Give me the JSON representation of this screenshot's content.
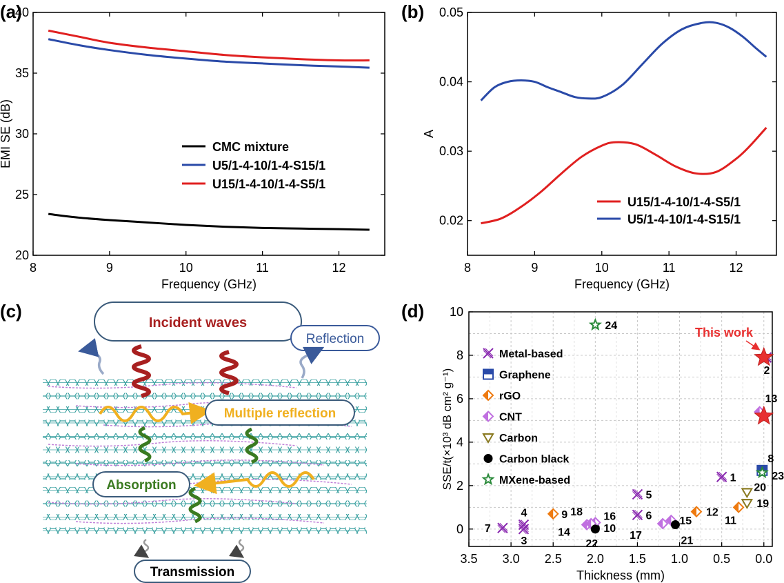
{
  "panel_labels": [
    "(a)",
    "(b)",
    "(c)",
    "(d)"
  ],
  "chart_data": [
    {
      "id": "a",
      "type": "line",
      "xlabel": "Frequency (GHz)",
      "ylabel": "EMI SE (dB)",
      "xlim": [
        8,
        12.6
      ],
      "ylim": [
        20,
        40
      ],
      "xticks": [
        8,
        9,
        10,
        11,
        12
      ],
      "yticks": [
        20,
        25,
        30,
        35,
        40
      ],
      "legend_position": "center-right",
      "grid": false,
      "series": [
        {
          "name": "CMC mixture",
          "color": "#000000",
          "x": [
            8.2,
            8.6,
            9.0,
            9.5,
            10.0,
            10.5,
            11.0,
            11.5,
            12.0,
            12.4
          ],
          "y": [
            23.4,
            23.1,
            22.9,
            22.7,
            22.5,
            22.35,
            22.25,
            22.2,
            22.15,
            22.1
          ]
        },
        {
          "name": "U5/1-4-10/1-4-S15/1",
          "color": "#2a4aa8",
          "x": [
            8.2,
            8.6,
            9.0,
            9.5,
            10.0,
            10.5,
            11.0,
            11.5,
            12.0,
            12.4
          ],
          "y": [
            37.8,
            37.3,
            36.9,
            36.5,
            36.2,
            35.95,
            35.8,
            35.65,
            35.55,
            35.45
          ]
        },
        {
          "name": "U15/1-4-10/1-4-S5/1",
          "color": "#e02020",
          "x": [
            8.2,
            8.6,
            9.0,
            9.5,
            10.0,
            10.5,
            11.0,
            11.5,
            12.0,
            12.4
          ],
          "y": [
            38.5,
            38.0,
            37.5,
            37.1,
            36.8,
            36.5,
            36.3,
            36.15,
            36.05,
            36.05
          ]
        }
      ]
    },
    {
      "id": "b",
      "type": "line",
      "xlabel": "Frequency (GHz)",
      "ylabel": "A",
      "xlim": [
        8,
        12.6
      ],
      "ylim": [
        0.015,
        0.05
      ],
      "xticks": [
        8,
        9,
        10,
        11,
        12
      ],
      "yticks": [
        0.02,
        0.03,
        0.04,
        0.05
      ],
      "legend_position": "bottom-right",
      "grid": false,
      "series": [
        {
          "name": "U15/1-4-10/1-4-S5/1",
          "color": "#e02020",
          "x": [
            8.2,
            8.5,
            8.8,
            9.1,
            9.4,
            9.7,
            10.0,
            10.2,
            10.5,
            10.8,
            11.1,
            11.4,
            11.7,
            12.0,
            12.2,
            12.45
          ],
          "y": [
            0.0196,
            0.0203,
            0.022,
            0.0242,
            0.0268,
            0.0292,
            0.0308,
            0.0313,
            0.031,
            0.0295,
            0.0278,
            0.0268,
            0.027,
            0.0289,
            0.0307,
            0.0334
          ]
        },
        {
          "name": "U5/1-4-10/1-4-S15/1",
          "color": "#2a4aa8",
          "x": [
            8.2,
            8.4,
            8.6,
            8.8,
            9.0,
            9.2,
            9.4,
            9.6,
            9.8,
            10.0,
            10.3,
            10.6,
            10.9,
            11.2,
            11.5,
            11.7,
            11.9,
            12.1,
            12.3,
            12.45
          ],
          "y": [
            0.0373,
            0.0392,
            0.04,
            0.0402,
            0.04,
            0.0392,
            0.0385,
            0.0378,
            0.0376,
            0.0378,
            0.0395,
            0.0425,
            0.0455,
            0.0476,
            0.0485,
            0.0485,
            0.0478,
            0.0465,
            0.0448,
            0.0436
          ]
        }
      ]
    },
    {
      "id": "d",
      "type": "scatter",
      "xlabel": "Thickness (mm)",
      "ylabel": "SSE/t(×10³ dB cm² g⁻¹)",
      "xlim": [
        3.5,
        -0.1
      ],
      "ylim": [
        -0.8,
        10
      ],
      "xticks": [
        3.5,
        3.0,
        2.5,
        2.0,
        1.5,
        1.0,
        0.5,
        0.0
      ],
      "yticks": [
        0,
        2,
        4,
        6,
        8,
        10
      ],
      "grid": true,
      "legend_position": "left",
      "annotation": "This work",
      "categories": [
        {
          "name": "Metal-based",
          "marker": "boxx",
          "color": "#8a2ab0"
        },
        {
          "name": "Graphene",
          "marker": "halfsquare",
          "color": "#2a4aa8"
        },
        {
          "name": "rGO",
          "marker": "diamond",
          "color": "#ee7a10"
        },
        {
          "name": "CNT",
          "marker": "diamond",
          "color": "#c070e0"
        },
        {
          "name": "Carbon",
          "marker": "triangle",
          "color": "#8a7a20"
        },
        {
          "name": "Carbon black",
          "marker": "circle",
          "color": "#000000"
        },
        {
          "name": "MXene-based",
          "marker": "star",
          "color": "#2a8a3a"
        }
      ],
      "points": [
        {
          "label": "1",
          "cat": "Metal-based",
          "x": 0.5,
          "y": 2.4
        },
        {
          "label": "2",
          "cat": "Metal-based",
          "x": -0.03,
          "y": 7.9
        },
        {
          "label": "3",
          "cat": "Metal-based",
          "x": 2.85,
          "y": 0.0
        },
        {
          "label": "4",
          "cat": "Metal-based",
          "x": 2.85,
          "y": 0.2
        },
        {
          "label": "5",
          "cat": "Metal-based",
          "x": 1.5,
          "y": 1.6
        },
        {
          "label": "6",
          "cat": "Metal-based",
          "x": 1.5,
          "y": 0.65
        },
        {
          "label": "7",
          "cat": "Metal-based",
          "x": 3.1,
          "y": 0.05
        },
        {
          "label": "8",
          "cat": "Graphene",
          "x": 0.02,
          "y": 2.7
        },
        {
          "label": "9",
          "cat": "rGO",
          "x": 2.5,
          "y": 0.7
        },
        {
          "label": "10",
          "cat": "Carbon black",
          "x": 2.0,
          "y": 0.05
        },
        {
          "label": "11",
          "cat": "rGO",
          "x": 0.3,
          "y": 1.0
        },
        {
          "label": "12",
          "cat": "rGO",
          "x": 0.8,
          "y": 0.8
        },
        {
          "label": "13",
          "cat": "CNT",
          "x": 0.05,
          "y": 5.4
        },
        {
          "label": "14",
          "cat": "CNT",
          "x": 2.1,
          "y": 0.2
        },
        {
          "label": "15",
          "cat": "CNT",
          "x": 1.1,
          "y": 0.4
        },
        {
          "label": "16",
          "cat": "CNT",
          "x": 2.0,
          "y": 0.3
        },
        {
          "label": "17",
          "cat": "CNT",
          "x": 1.2,
          "y": 0.25
        },
        {
          "label": "18",
          "cat": "CNT",
          "x": 2.05,
          "y": 0.25
        },
        {
          "label": "19",
          "cat": "Carbon",
          "x": 0.2,
          "y": 1.2
        },
        {
          "label": "20",
          "cat": "Carbon",
          "x": 0.2,
          "y": 1.7
        },
        {
          "label": "21",
          "cat": "Carbon black",
          "x": 1.05,
          "y": 0.2
        },
        {
          "label": "22",
          "cat": "Carbon black",
          "x": 2.0,
          "y": 0.0
        },
        {
          "label": "23",
          "cat": "MXene-based",
          "x": 0.02,
          "y": 2.6
        },
        {
          "label": "24",
          "cat": "MXene-based",
          "x": 2.0,
          "y": 9.4
        }
      ],
      "this_work": [
        {
          "x": 0.0,
          "y": 7.9
        },
        {
          "x": 0.0,
          "y": 5.2
        }
      ]
    }
  ],
  "diagram_c": {
    "incident": "Incident waves",
    "reflection": "Reflection",
    "multiple": "Multiple reflection",
    "absorption": "Absorption",
    "transmission": "Transmission",
    "colors": {
      "incident": "#a82020",
      "reflection": "#3a5a9a",
      "multiple": "#f0b020",
      "absorption": "#3a7a20",
      "layer": "#3aa0a0",
      "chain": "#a060c0"
    }
  }
}
